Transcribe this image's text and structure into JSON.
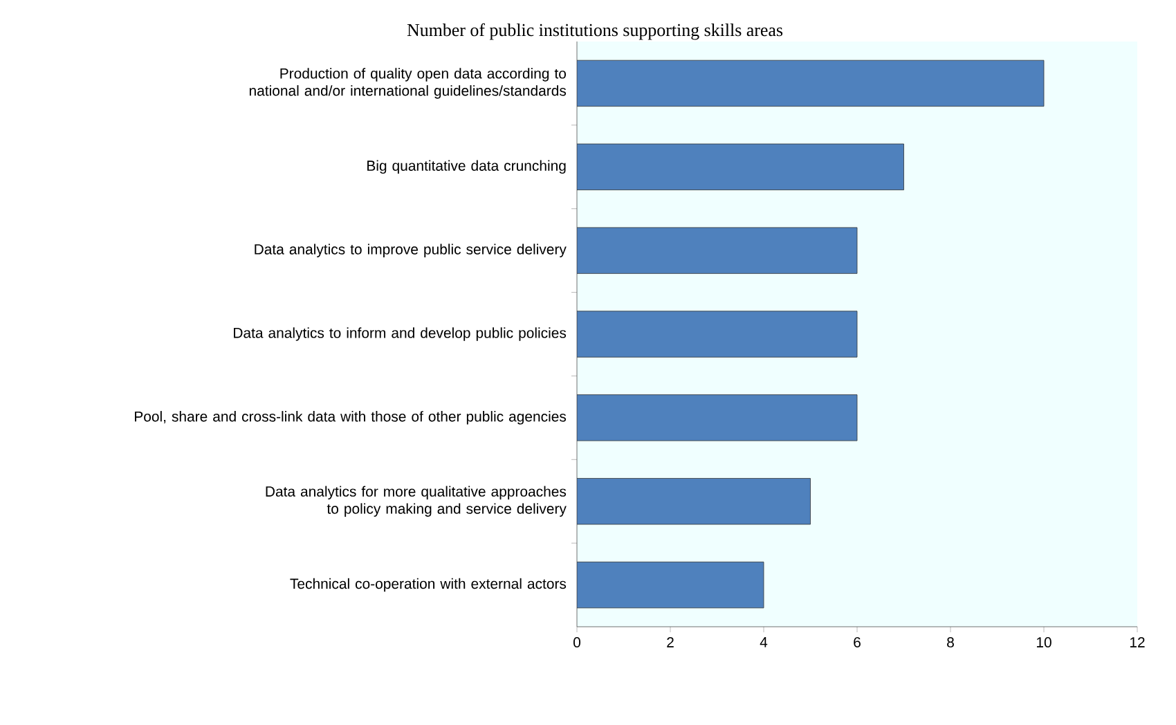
{
  "chart_data": {
    "type": "bar",
    "orientation": "horizontal",
    "title": "Number of public institutions supporting skills areas",
    "categories": [
      "Production of quality open data according to national and/or international guidelines/standards",
      "Big quantitative data crunching",
      "Data analytics to improve public service delivery",
      "Data analytics to inform and develop public policies",
      "Pool, share and cross-link data with those of other public agencies",
      "Data analytics for more qualitative approaches to policy making and service delivery",
      "Technical co-operation with external actors"
    ],
    "values": [
      10,
      7,
      6,
      6,
      6,
      5,
      4
    ],
    "color": "#4f81bd",
    "xlim": [
      0,
      12
    ],
    "xticks": [
      0,
      2,
      4,
      6,
      8,
      10,
      12
    ]
  }
}
